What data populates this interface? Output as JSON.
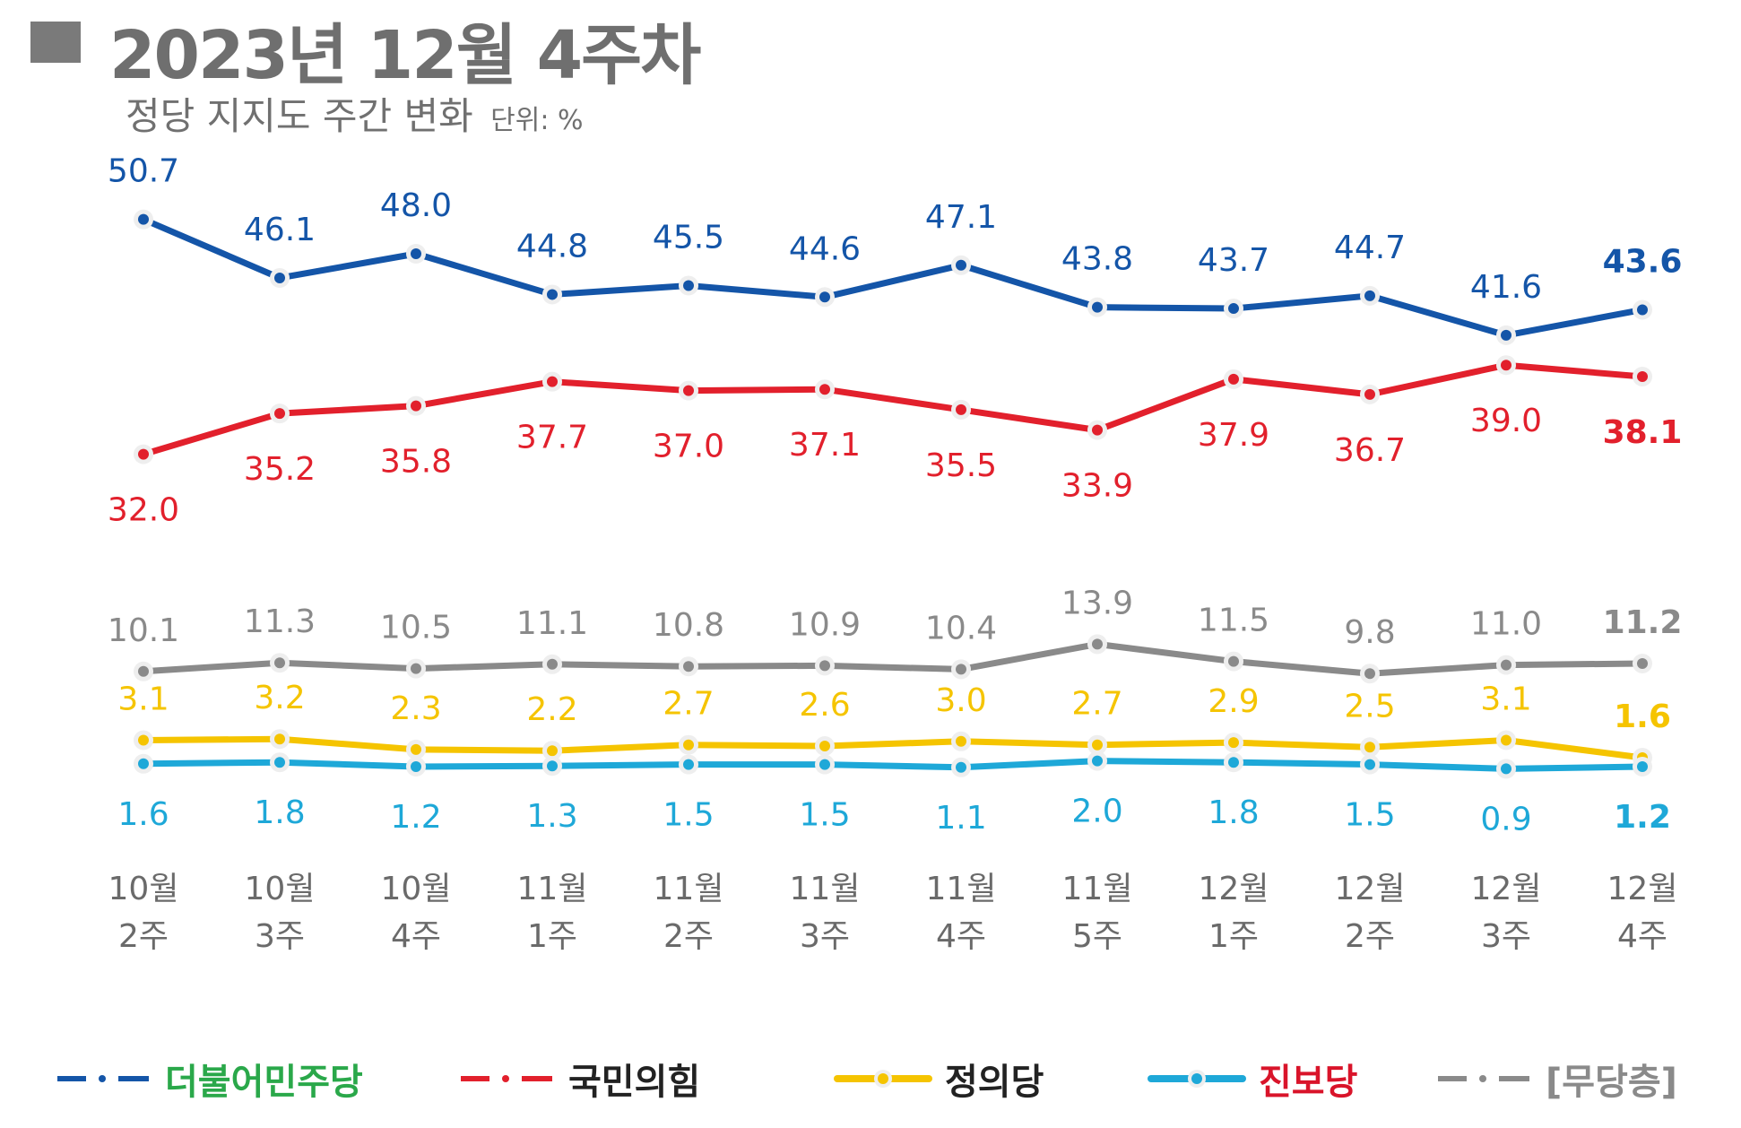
{
  "header": {
    "title": "2023년 12월 4주차",
    "subtitle": "정당 지지도 주간 변화",
    "unit": "단위: %"
  },
  "colors": {
    "democratic": "#1455a8",
    "ppp": "#e2202c",
    "independent": "#8a8a8a",
    "justice": "#f5c400",
    "progressive": "#1ea8d8"
  },
  "chart_data": {
    "type": "line",
    "categories": [
      "10월\n2주",
      "10월\n3주",
      "10월\n4주",
      "11월\n1주",
      "11월\n2주",
      "11월\n3주",
      "11월\n4주",
      "11월\n5주",
      "12월\n1주",
      "12월\n2주",
      "12월\n3주",
      "12월\n4주"
    ],
    "series": [
      {
        "name": "더불어민주당",
        "key": "democratic",
        "values": [
          50.7,
          46.1,
          48.0,
          44.8,
          45.5,
          44.6,
          47.1,
          43.8,
          43.7,
          44.7,
          41.6,
          43.6
        ]
      },
      {
        "name": "국민의힘",
        "key": "ppp",
        "values": [
          32.0,
          35.2,
          35.8,
          37.7,
          37.0,
          37.1,
          35.5,
          33.9,
          37.9,
          36.7,
          39.0,
          38.1
        ]
      },
      {
        "name": "[무당층]",
        "key": "independent",
        "values": [
          10.1,
          11.3,
          10.5,
          11.1,
          10.8,
          10.9,
          10.4,
          13.9,
          11.5,
          9.8,
          11.0,
          11.2
        ]
      },
      {
        "name": "정의당",
        "key": "justice",
        "values": [
          3.1,
          3.2,
          2.3,
          2.2,
          2.7,
          2.6,
          3.0,
          2.7,
          2.9,
          2.5,
          3.1,
          1.6
        ]
      },
      {
        "name": "진보당",
        "key": "progressive",
        "values": [
          1.6,
          1.8,
          1.2,
          1.3,
          1.5,
          1.5,
          1.1,
          2.0,
          1.8,
          1.5,
          0.9,
          1.2
        ]
      }
    ],
    "grid": false,
    "legend_position": "bottom"
  },
  "legend": [
    {
      "key": "democratic",
      "label": "더불어민주당",
      "label_color": "#2aa84a"
    },
    {
      "key": "ppp",
      "label": "국민의힘",
      "label_color": "#222222"
    },
    {
      "key": "justice",
      "label": "정의당",
      "label_color": "#222222"
    },
    {
      "key": "progressive",
      "label": "진보당",
      "label_color": "#d9142a"
    },
    {
      "key": "independent",
      "label": "[무당층]",
      "label_color": "#8a8a8a"
    }
  ]
}
